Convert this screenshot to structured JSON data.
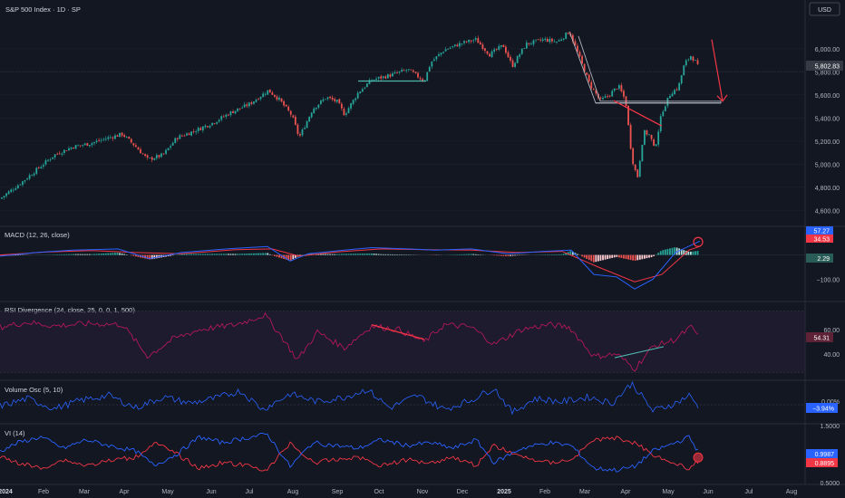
{
  "header": {
    "title": "S&P 500 Index · 1D · SP",
    "currency": "USD"
  },
  "chart_data": [
    {
      "type": "candlestick",
      "name": "S&P 500 Index",
      "ylim": [
        4500,
        6250
      ],
      "yticks": [
        "6,000.00",
        "5,800.00",
        "5,600.00",
        "5,400.00",
        "5,200.00",
        "5,000.00",
        "4,800.00",
        "4,600.00"
      ],
      "ytick_values": [
        6000,
        5800,
        5600,
        5400,
        5200,
        5000,
        4800,
        4600
      ],
      "last_price": "5,802.83",
      "key_points": [
        {
          "x": 0,
          "y": 4700
        },
        {
          "x": 25,
          "y": 4850
        },
        {
          "x": 40,
          "y": 4950
        },
        {
          "x": 60,
          "y": 5080
        },
        {
          "x": 80,
          "y": 5150
        },
        {
          "x": 100,
          "y": 5180
        },
        {
          "x": 120,
          "y": 5230
        },
        {
          "x": 135,
          "y": 5260
        },
        {
          "x": 150,
          "y": 5150
        },
        {
          "x": 163,
          "y": 5040
        },
        {
          "x": 180,
          "y": 5080
        },
        {
          "x": 195,
          "y": 5230
        },
        {
          "x": 215,
          "y": 5290
        },
        {
          "x": 235,
          "y": 5360
        },
        {
          "x": 255,
          "y": 5450
        },
        {
          "x": 275,
          "y": 5520
        },
        {
          "x": 296,
          "y": 5640
        },
        {
          "x": 308,
          "y": 5560
        },
        {
          "x": 322,
          "y": 5420
        },
        {
          "x": 330,
          "y": 5230
        },
        {
          "x": 345,
          "y": 5480
        },
        {
          "x": 360,
          "y": 5580
        },
        {
          "x": 372,
          "y": 5540
        },
        {
          "x": 380,
          "y": 5430
        },
        {
          "x": 395,
          "y": 5620
        },
        {
          "x": 410,
          "y": 5730
        },
        {
          "x": 430,
          "y": 5770
        },
        {
          "x": 450,
          "y": 5820
        },
        {
          "x": 468,
          "y": 5720
        },
        {
          "x": 475,
          "y": 5880
        },
        {
          "x": 490,
          "y": 5990
        },
        {
          "x": 510,
          "y": 6050
        },
        {
          "x": 525,
          "y": 6080
        },
        {
          "x": 540,
          "y": 5950
        },
        {
          "x": 555,
          "y": 6030
        },
        {
          "x": 565,
          "y": 5850
        },
        {
          "x": 580,
          "y": 6040
        },
        {
          "x": 600,
          "y": 6080
        },
        {
          "x": 615,
          "y": 6060
        },
        {
          "x": 628,
          "y": 6150
        },
        {
          "x": 638,
          "y": 5950
        },
        {
          "x": 650,
          "y": 5700
        },
        {
          "x": 662,
          "y": 5550
        },
        {
          "x": 672,
          "y": 5600
        },
        {
          "x": 682,
          "y": 5680
        },
        {
          "x": 690,
          "y": 5550
        },
        {
          "x": 697,
          "y": 5050
        },
        {
          "x": 703,
          "y": 4880
        },
        {
          "x": 710,
          "y": 5280
        },
        {
          "x": 717,
          "y": 5250
        },
        {
          "x": 722,
          "y": 5120
        },
        {
          "x": 730,
          "y": 5450
        },
        {
          "x": 740,
          "y": 5620
        },
        {
          "x": 748,
          "y": 5660
        },
        {
          "x": 755,
          "y": 5870
        },
        {
          "x": 762,
          "y": 5940
        },
        {
          "x": 768,
          "y": 5880
        },
        {
          "x": 772,
          "y": 5802
        }
      ]
    },
    {
      "type": "line",
      "name": "MACD",
      "label": "MACD (12, 26, close)",
      "ylim": [
        -180,
        110
      ],
      "yticks": [
        "−100.00"
      ],
      "ytick_values": [
        -100
      ],
      "values_label_1": "57.27",
      "values_label_2": "34.53",
      "values_label_3": "2.29",
      "macd_points": [
        {
          "x": 0,
          "y": -5
        },
        {
          "x": 40,
          "y": 10
        },
        {
          "x": 80,
          "y": 20
        },
        {
          "x": 130,
          "y": 25
        },
        {
          "x": 165,
          "y": -15
        },
        {
          "x": 200,
          "y": 10
        },
        {
          "x": 250,
          "y": 25
        },
        {
          "x": 295,
          "y": 35
        },
        {
          "x": 320,
          "y": -25
        },
        {
          "x": 340,
          "y": 5
        },
        {
          "x": 380,
          "y": 20
        },
        {
          "x": 410,
          "y": 30
        },
        {
          "x": 450,
          "y": 25
        },
        {
          "x": 480,
          "y": 20
        },
        {
          "x": 520,
          "y": 25
        },
        {
          "x": 560,
          "y": 5
        },
        {
          "x": 600,
          "y": 15
        },
        {
          "x": 630,
          "y": 20
        },
        {
          "x": 655,
          "y": -80
        },
        {
          "x": 680,
          "y": -90
        },
        {
          "x": 700,
          "y": -140
        },
        {
          "x": 720,
          "y": -100
        },
        {
          "x": 745,
          "y": 10
        },
        {
          "x": 772,
          "y": 57
        }
      ],
      "signal_points": [
        {
          "x": 0,
          "y": 0
        },
        {
          "x": 50,
          "y": 12
        },
        {
          "x": 100,
          "y": 18
        },
        {
          "x": 150,
          "y": 10
        },
        {
          "x": 200,
          "y": 5
        },
        {
          "x": 260,
          "y": 22
        },
        {
          "x": 300,
          "y": 25
        },
        {
          "x": 330,
          "y": -5
        },
        {
          "x": 370,
          "y": 12
        },
        {
          "x": 420,
          "y": 25
        },
        {
          "x": 470,
          "y": 22
        },
        {
          "x": 520,
          "y": 20
        },
        {
          "x": 570,
          "y": 10
        },
        {
          "x": 620,
          "y": 15
        },
        {
          "x": 660,
          "y": -50
        },
        {
          "x": 700,
          "y": -110
        },
        {
          "x": 730,
          "y": -80
        },
        {
          "x": 760,
          "y": 20
        },
        {
          "x": 772,
          "y": 35
        }
      ]
    },
    {
      "type": "line",
      "name": "RSI",
      "label": "RSI Divergence (24, close, 25, 0, 0, 1, 500)",
      "ylim": [
        20,
        80
      ],
      "yticks": [
        "60.00",
        "40.00"
      ],
      "ytick_values": [
        60,
        40
      ],
      "last_value": "54.31",
      "points": [
        {
          "x": 0,
          "y": 62
        },
        {
          "x": 30,
          "y": 66
        },
        {
          "x": 60,
          "y": 63
        },
        {
          "x": 100,
          "y": 65
        },
        {
          "x": 135,
          "y": 64
        },
        {
          "x": 163,
          "y": 38
        },
        {
          "x": 190,
          "y": 52
        },
        {
          "x": 220,
          "y": 60
        },
        {
          "x": 260,
          "y": 64
        },
        {
          "x": 292,
          "y": 72
        },
        {
          "x": 310,
          "y": 55
        },
        {
          "x": 328,
          "y": 35
        },
        {
          "x": 350,
          "y": 58
        },
        {
          "x": 380,
          "y": 45
        },
        {
          "x": 410,
          "y": 63
        },
        {
          "x": 440,
          "y": 60
        },
        {
          "x": 468,
          "y": 50
        },
        {
          "x": 490,
          "y": 64
        },
        {
          "x": 520,
          "y": 62
        },
        {
          "x": 545,
          "y": 48
        },
        {
          "x": 575,
          "y": 60
        },
        {
          "x": 605,
          "y": 64
        },
        {
          "x": 628,
          "y": 62
        },
        {
          "x": 655,
          "y": 38
        },
        {
          "x": 680,
          "y": 40
        },
        {
          "x": 700,
          "y": 28
        },
        {
          "x": 720,
          "y": 46
        },
        {
          "x": 745,
          "y": 52
        },
        {
          "x": 762,
          "y": 62
        },
        {
          "x": 772,
          "y": 54
        }
      ]
    },
    {
      "type": "line",
      "name": "Volume Osc",
      "label": "Volume Osc (5, 10)",
      "yticks": [
        "0.00%"
      ],
      "last_value": "−3.94%",
      "points": [
        {
          "x": 0,
          "y": -2
        },
        {
          "x": 30,
          "y": 8
        },
        {
          "x": 60,
          "y": -5
        },
        {
          "x": 90,
          "y": 6
        },
        {
          "x": 120,
          "y": 12
        },
        {
          "x": 150,
          "y": -4
        },
        {
          "x": 180,
          "y": 10
        },
        {
          "x": 210,
          "y": 2
        },
        {
          "x": 240,
          "y": 9
        },
        {
          "x": 265,
          "y": 18
        },
        {
          "x": 290,
          "y": -6
        },
        {
          "x": 320,
          "y": 14
        },
        {
          "x": 350,
          "y": 4
        },
        {
          "x": 380,
          "y": 10
        },
        {
          "x": 405,
          "y": 20
        },
        {
          "x": 430,
          "y": -4
        },
        {
          "x": 460,
          "y": 12
        },
        {
          "x": 490,
          "y": -6
        },
        {
          "x": 520,
          "y": 6
        },
        {
          "x": 545,
          "y": 22
        },
        {
          "x": 565,
          "y": -10
        },
        {
          "x": 590,
          "y": 8
        },
        {
          "x": 620,
          "y": 4
        },
        {
          "x": 650,
          "y": 10
        },
        {
          "x": 675,
          "y": 2
        },
        {
          "x": 697,
          "y": 28
        },
        {
          "x": 720,
          "y": -8
        },
        {
          "x": 745,
          "y": 2
        },
        {
          "x": 760,
          "y": 12
        },
        {
          "x": 772,
          "y": -4
        }
      ]
    },
    {
      "type": "line",
      "name": "VI",
      "label": "VI (14)",
      "ylim": [
        0.5,
        1.5
      ],
      "yticks": [
        "1.5000",
        "0.5000"
      ],
      "ytick_values": [
        1.5,
        0.5
      ],
      "vi_plus_value": "0.9987",
      "vi_minus_value": "0.8895",
      "vi_plus": [
        {
          "x": 0,
          "y": 1.05
        },
        {
          "x": 20,
          "y": 1.2
        },
        {
          "x": 45,
          "y": 1.3
        },
        {
          "x": 70,
          "y": 1.1
        },
        {
          "x": 95,
          "y": 1.25
        },
        {
          "x": 120,
          "y": 1.15
        },
        {
          "x": 150,
          "y": 1.05
        },
        {
          "x": 170,
          "y": 0.8
        },
        {
          "x": 195,
          "y": 1.0
        },
        {
          "x": 220,
          "y": 1.3
        },
        {
          "x": 245,
          "y": 1.2
        },
        {
          "x": 270,
          "y": 1.28
        },
        {
          "x": 295,
          "y": 1.35
        },
        {
          "x": 320,
          "y": 0.78
        },
        {
          "x": 345,
          "y": 1.2
        },
        {
          "x": 370,
          "y": 1.15
        },
        {
          "x": 395,
          "y": 1.1
        },
        {
          "x": 420,
          "y": 1.25
        },
        {
          "x": 450,
          "y": 1.15
        },
        {
          "x": 475,
          "y": 1.2
        },
        {
          "x": 500,
          "y": 1.1
        },
        {
          "x": 525,
          "y": 1.25
        },
        {
          "x": 545,
          "y": 0.85
        },
        {
          "x": 575,
          "y": 1.1
        },
        {
          "x": 605,
          "y": 1.2
        },
        {
          "x": 630,
          "y": 1.15
        },
        {
          "x": 655,
          "y": 0.75
        },
        {
          "x": 680,
          "y": 0.72
        },
        {
          "x": 700,
          "y": 0.78
        },
        {
          "x": 720,
          "y": 1.05
        },
        {
          "x": 745,
          "y": 1.2
        },
        {
          "x": 760,
          "y": 1.3
        },
        {
          "x": 772,
          "y": 1.0
        }
      ],
      "vi_minus": [
        {
          "x": 0,
          "y": 0.95
        },
        {
          "x": 20,
          "y": 0.85
        },
        {
          "x": 45,
          "y": 0.75
        },
        {
          "x": 70,
          "y": 0.9
        },
        {
          "x": 95,
          "y": 0.8
        },
        {
          "x": 120,
          "y": 0.88
        },
        {
          "x": 150,
          "y": 0.95
        },
        {
          "x": 170,
          "y": 1.2
        },
        {
          "x": 195,
          "y": 1.0
        },
        {
          "x": 220,
          "y": 0.75
        },
        {
          "x": 245,
          "y": 0.85
        },
        {
          "x": 270,
          "y": 0.8
        },
        {
          "x": 295,
          "y": 0.72
        },
        {
          "x": 320,
          "y": 1.2
        },
        {
          "x": 345,
          "y": 0.85
        },
        {
          "x": 370,
          "y": 0.9
        },
        {
          "x": 395,
          "y": 0.95
        },
        {
          "x": 420,
          "y": 0.8
        },
        {
          "x": 450,
          "y": 0.9
        },
        {
          "x": 475,
          "y": 0.85
        },
        {
          "x": 500,
          "y": 0.95
        },
        {
          "x": 525,
          "y": 0.8
        },
        {
          "x": 545,
          "y": 1.15
        },
        {
          "x": 575,
          "y": 0.95
        },
        {
          "x": 605,
          "y": 0.85
        },
        {
          "x": 630,
          "y": 0.9
        },
        {
          "x": 655,
          "y": 1.25
        },
        {
          "x": 680,
          "y": 1.28
        },
        {
          "x": 700,
          "y": 1.2
        },
        {
          "x": 720,
          "y": 1.0
        },
        {
          "x": 745,
          "y": 0.82
        },
        {
          "x": 760,
          "y": 0.75
        },
        {
          "x": 772,
          "y": 0.89
        }
      ]
    }
  ],
  "xaxis": {
    "labels": [
      "2024",
      "Feb",
      "Mar",
      "Apr",
      "May",
      "Jun",
      "Jul",
      "Aug",
      "Sep",
      "Oct",
      "Nov",
      "Dec",
      "2025",
      "Feb",
      "Mar",
      "Apr",
      "May",
      "Jun",
      "Jul",
      "Aug"
    ],
    "positions": [
      6,
      48,
      93,
      137,
      185,
      233,
      275,
      323,
      372,
      418,
      466,
      510,
      556,
      601,
      645,
      690,
      737,
      781,
      826,
      873
    ]
  },
  "colors": {
    "background": "#131722",
    "up": "#26a69a",
    "down": "#ef5350",
    "price_label": "#363a45",
    "macd_line": "#2962ff",
    "signal_line": "#f23645",
    "rsi_line": "#c2185b",
    "volosc_line": "#2962ff",
    "vi_plus": "#2962ff",
    "vi_minus": "#f23645",
    "trend_red": "#f23645",
    "trend_green": "#4db6ac",
    "support": "#9ca3af"
  }
}
